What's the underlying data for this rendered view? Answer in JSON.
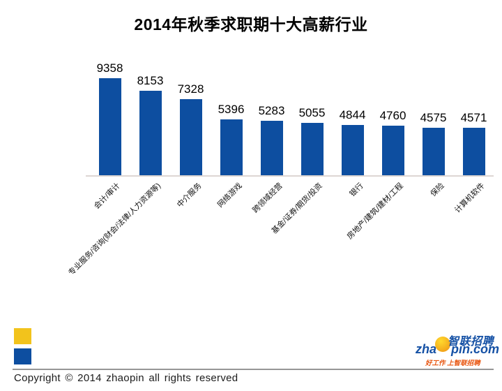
{
  "chart_data": {
    "type": "bar",
    "title": "2014年秋季求职期十大高薪行业",
    "categories": [
      "会计/审计",
      "专业服务/咨询(财会/法律/人力资源等)",
      "中介服务",
      "网络游戏",
      "跨领域经营",
      "基金/证券/期货/投资",
      "银行",
      "房地产/建筑/建材/工程",
      "保险",
      "计算机软件"
    ],
    "values": [
      9358,
      8153,
      7328,
      5396,
      5283,
      5055,
      4844,
      4760,
      4575,
      4571
    ],
    "xlabel": "",
    "ylabel": "",
    "ylim": [
      0,
      10000
    ],
    "grid": false,
    "legend": false,
    "value_axis": "hidden",
    "value_labels_shown": true,
    "category_label_rotation": -45
  },
  "colors": {
    "bar": "#0D4EA0",
    "legend_yellow": "#F2C31C",
    "legend_blue": "#0D4EA0",
    "axis_line": "#DDD6D3",
    "divider": "#979797",
    "logo_blue": "#1551A5",
    "tagline": "#E8540E"
  },
  "footer": {
    "copyright": "Copyright © 2014 zhaopin all rights reserved"
  },
  "logo": {
    "brand_cn": "智联招聘",
    "domain_prefix": "zha",
    "domain_suffix": "pin.com",
    "tagline": "好工作 上智联招聘"
  }
}
